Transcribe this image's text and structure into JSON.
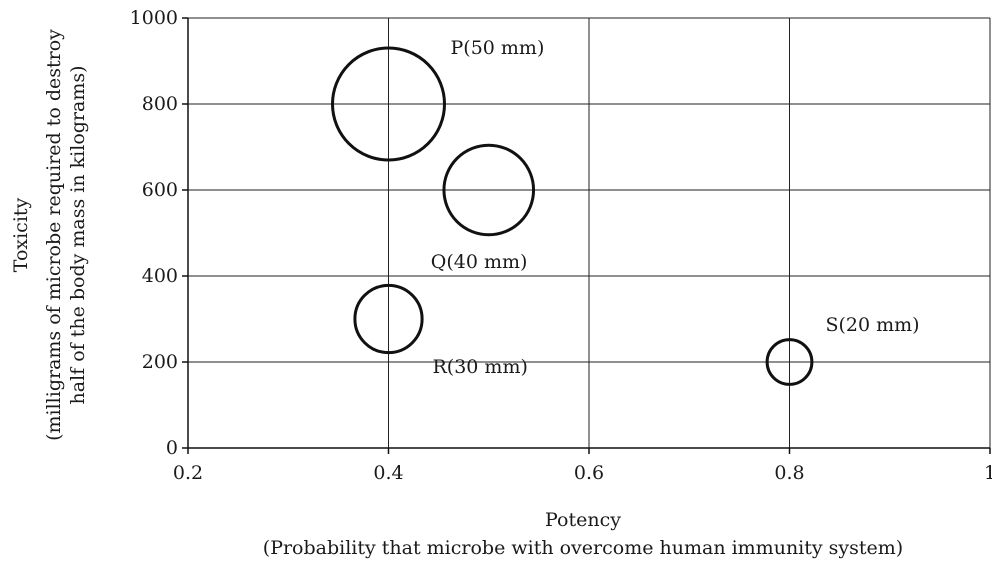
{
  "chart_data": {
    "type": "scatter",
    "title": "",
    "xlabel": "Potency",
    "xlabel_sub": "(Probability that microbe with overcome human immunity system)",
    "ylabel": "Toxicity",
    "ylabel_sub1": "(milligrams of microbe required to destroy",
    "ylabel_sub2": "half of the body mass in kilograms)",
    "xlim": [
      0.2,
      1
    ],
    "ylim": [
      0,
      1000
    ],
    "x_ticks": [
      0.2,
      0.4,
      0.6,
      0.8,
      1
    ],
    "x_tick_labels": [
      "0.2",
      "0.4",
      "0.6",
      "0.8",
      "1"
    ],
    "y_ticks": [
      0,
      200,
      400,
      600,
      800,
      1000
    ],
    "y_tick_labels": [
      "0",
      "200",
      "400",
      "600",
      "800",
      "1000"
    ],
    "grid": true,
    "points": [
      {
        "label": "P(50 mm)",
        "x": 0.4,
        "y": 800,
        "size_mm": 50
      },
      {
        "label": "Q(40 mm)",
        "x": 0.5,
        "y": 600,
        "size_mm": 40
      },
      {
        "label": "R(30 mm)",
        "x": 0.4,
        "y": 300,
        "size_mm": 30
      },
      {
        "label": "S(20 mm)",
        "x": 0.8,
        "y": 200,
        "size_mm": 20
      }
    ]
  }
}
